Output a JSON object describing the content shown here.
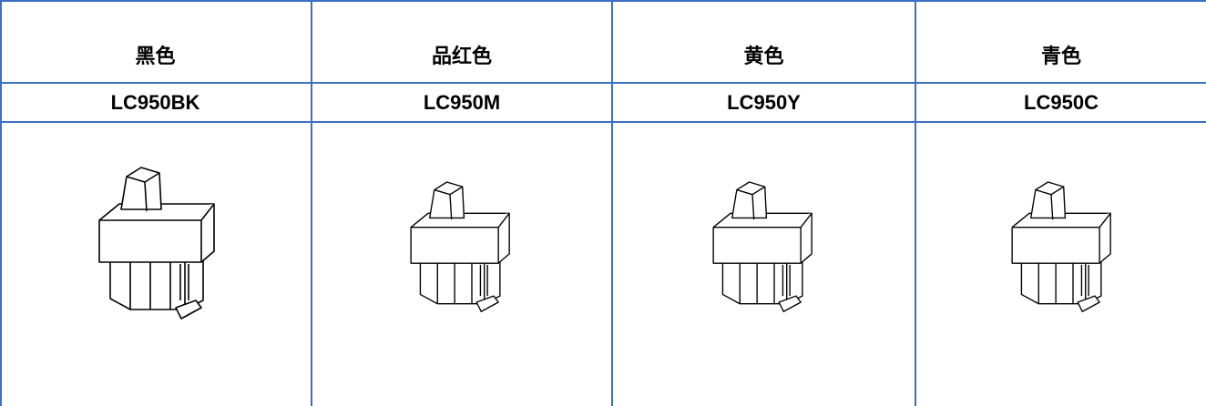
{
  "table": {
    "header": [
      "黑色",
      "品红色",
      "黄色",
      "青色"
    ],
    "rows": [
      [
        "LC950BK",
        "LC950M",
        "LC950Y",
        "LC950C"
      ]
    ]
  }
}
